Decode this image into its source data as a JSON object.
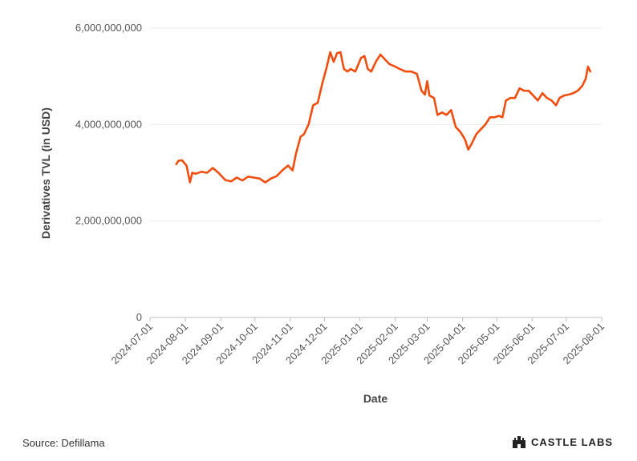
{
  "chart_data": {
    "type": "line",
    "xlabel": "Date",
    "ylabel": "Derivatives TVL (in USD)",
    "ylim": [
      0,
      6000000000
    ],
    "yticks": [
      0,
      2000000000,
      4000000000,
      6000000000
    ],
    "ytick_labels": [
      "0",
      "2,000,000,000",
      "4,000,000,000",
      "6,000,000,000"
    ],
    "xlim": [
      "2024-07-01",
      "2025-08-01"
    ],
    "xtick_labels": [
      "2024-07-01",
      "2024-08-01",
      "2024-09-01",
      "2024-10-01",
      "2024-11-01",
      "2024-12-01",
      "2025-01-01",
      "2025-02-01",
      "2025-03-01",
      "2025-04-01",
      "2025-05-01",
      "2025-06-01",
      "2025-07-01",
      "2025-08-01"
    ],
    "grid": "horizontal",
    "series_color": "#f04e0f",
    "series": [
      {
        "points": [
          [
            "2024-07-24",
            3180000000
          ],
          [
            "2024-07-26",
            3250000000
          ],
          [
            "2024-07-29",
            3260000000
          ],
          [
            "2024-08-02",
            3150000000
          ],
          [
            "2024-08-05",
            2800000000
          ],
          [
            "2024-08-07",
            3000000000
          ],
          [
            "2024-08-10",
            2980000000
          ],
          [
            "2024-08-15",
            3020000000
          ],
          [
            "2024-08-20",
            3000000000
          ],
          [
            "2024-08-25",
            3100000000
          ],
          [
            "2024-08-30",
            3000000000
          ],
          [
            "2024-09-05",
            2850000000
          ],
          [
            "2024-09-10",
            2820000000
          ],
          [
            "2024-09-15",
            2900000000
          ],
          [
            "2024-09-20",
            2840000000
          ],
          [
            "2024-09-25",
            2920000000
          ],
          [
            "2024-09-30",
            2900000000
          ],
          [
            "2024-10-05",
            2880000000
          ],
          [
            "2024-10-10",
            2800000000
          ],
          [
            "2024-10-15",
            2880000000
          ],
          [
            "2024-10-20",
            2930000000
          ],
          [
            "2024-10-25",
            3050000000
          ],
          [
            "2024-10-30",
            3150000000
          ],
          [
            "2024-11-03",
            3050000000
          ],
          [
            "2024-11-06",
            3400000000
          ],
          [
            "2024-11-10",
            3750000000
          ],
          [
            "2024-11-13",
            3800000000
          ],
          [
            "2024-11-17",
            4000000000
          ],
          [
            "2024-11-21",
            4400000000
          ],
          [
            "2024-11-25",
            4450000000
          ],
          [
            "2024-11-29",
            4850000000
          ],
          [
            "2024-12-03",
            5200000000
          ],
          [
            "2024-12-06",
            5500000000
          ],
          [
            "2024-12-09",
            5300000000
          ],
          [
            "2024-12-12",
            5480000000
          ],
          [
            "2024-12-15",
            5500000000
          ],
          [
            "2024-12-18",
            5150000000
          ],
          [
            "2024-12-21",
            5100000000
          ],
          [
            "2024-12-24",
            5150000000
          ],
          [
            "2024-12-28",
            5100000000
          ],
          [
            "2025-01-02",
            5380000000
          ],
          [
            "2025-01-05",
            5420000000
          ],
          [
            "2025-01-08",
            5150000000
          ],
          [
            "2025-01-11",
            5100000000
          ],
          [
            "2025-01-15",
            5300000000
          ],
          [
            "2025-01-19",
            5450000000
          ],
          [
            "2025-01-23",
            5350000000
          ],
          [
            "2025-01-27",
            5250000000
          ],
          [
            "2025-02-01",
            5200000000
          ],
          [
            "2025-02-05",
            5150000000
          ],
          [
            "2025-02-10",
            5100000000
          ],
          [
            "2025-02-15",
            5100000000
          ],
          [
            "2025-02-20",
            5050000000
          ],
          [
            "2025-02-24",
            4700000000
          ],
          [
            "2025-02-27",
            4620000000
          ],
          [
            "2025-03-01",
            4900000000
          ],
          [
            "2025-03-03",
            4600000000
          ],
          [
            "2025-03-07",
            4550000000
          ],
          [
            "2025-03-10",
            4200000000
          ],
          [
            "2025-03-14",
            4250000000
          ],
          [
            "2025-03-18",
            4200000000
          ],
          [
            "2025-03-22",
            4300000000
          ],
          [
            "2025-03-26",
            3950000000
          ],
          [
            "2025-03-30",
            3850000000
          ],
          [
            "2025-04-03",
            3700000000
          ],
          [
            "2025-04-06",
            3480000000
          ],
          [
            "2025-04-09",
            3600000000
          ],
          [
            "2025-04-13",
            3800000000
          ],
          [
            "2025-04-17",
            3900000000
          ],
          [
            "2025-04-21",
            4000000000
          ],
          [
            "2025-04-25",
            4150000000
          ],
          [
            "2025-04-29",
            4150000000
          ],
          [
            "2025-05-03",
            4180000000
          ],
          [
            "2025-05-06",
            4150000000
          ],
          [
            "2025-05-09",
            4500000000
          ],
          [
            "2025-05-13",
            4550000000
          ],
          [
            "2025-05-17",
            4550000000
          ],
          [
            "2025-05-21",
            4750000000
          ],
          [
            "2025-05-25",
            4700000000
          ],
          [
            "2025-05-29",
            4700000000
          ],
          [
            "2025-06-02",
            4600000000
          ],
          [
            "2025-06-06",
            4500000000
          ],
          [
            "2025-06-10",
            4650000000
          ],
          [
            "2025-06-14",
            4550000000
          ],
          [
            "2025-06-18",
            4500000000
          ],
          [
            "2025-06-22",
            4400000000
          ],
          [
            "2025-06-25",
            4550000000
          ],
          [
            "2025-06-29",
            4600000000
          ],
          [
            "2025-07-03",
            4620000000
          ],
          [
            "2025-07-07",
            4650000000
          ],
          [
            "2025-07-11",
            4700000000
          ],
          [
            "2025-07-15",
            4800000000
          ],
          [
            "2025-07-18",
            4950000000
          ],
          [
            "2025-07-20",
            5200000000
          ],
          [
            "2025-07-22",
            5100000000
          ]
        ]
      }
    ]
  },
  "footer": {
    "source": "Source: Defillama",
    "brand": "CASTLE LABS"
  }
}
